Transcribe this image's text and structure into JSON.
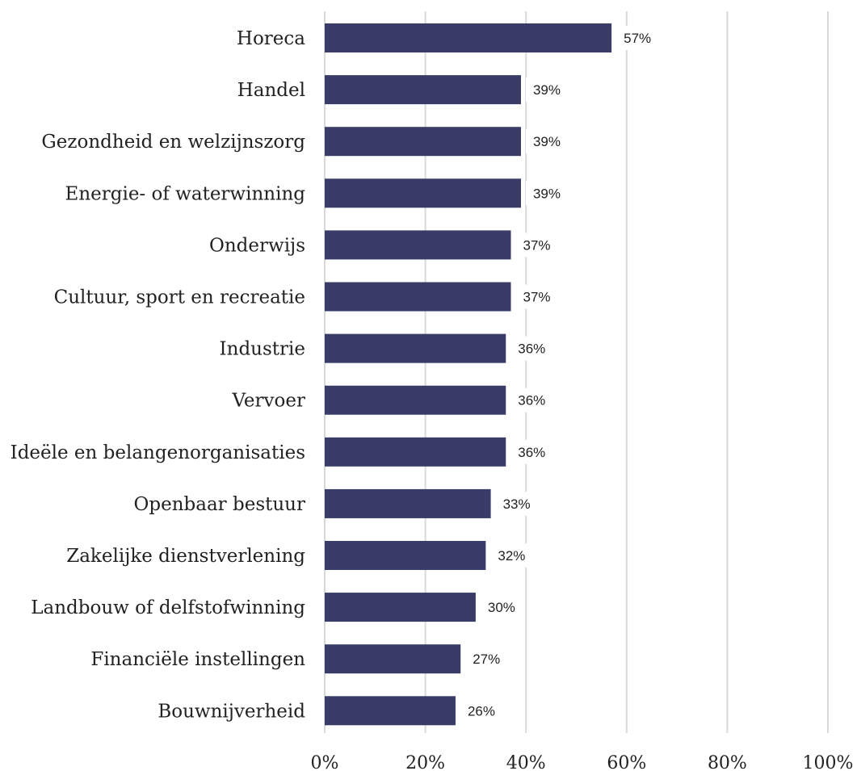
{
  "chart_data": {
    "type": "bar",
    "orientation": "horizontal",
    "categories": [
      "Horeca",
      "Handel",
      "Gezondheid en welzijnszorg",
      "Energie- of waterwinning",
      "Onderwijs",
      "Cultuur, sport en recreatie",
      "Industrie",
      "Vervoer",
      "Ideële en belangenorganisaties",
      "Openbaar bestuur",
      "Zakelijke dienstverlening",
      "Landbouw of delfstofwinning",
      "Financiële instellingen",
      "Bouwnijverheid"
    ],
    "values": [
      57,
      39,
      39,
      39,
      37,
      37,
      36,
      36,
      36,
      33,
      32,
      30,
      27,
      26
    ],
    "data_labels": [
      "57%",
      "39%",
      "39%",
      "39%",
      "37%",
      "37%",
      "36%",
      "36%",
      "36%",
      "33%",
      "32%",
      "30%",
      "27%",
      "26%"
    ],
    "xlim": [
      0,
      100
    ],
    "xticks": [
      0,
      20,
      40,
      60,
      80,
      100
    ],
    "xtick_labels": [
      "0%",
      "20%",
      "40%",
      "60%",
      "80%",
      "100%"
    ],
    "grid": "vertical",
    "legend": "none",
    "title": "",
    "xlabel": "",
    "ylabel": "",
    "colors": {
      "bar": "#383C66",
      "grid": "#D9D9D9",
      "text": "#222222"
    }
  }
}
